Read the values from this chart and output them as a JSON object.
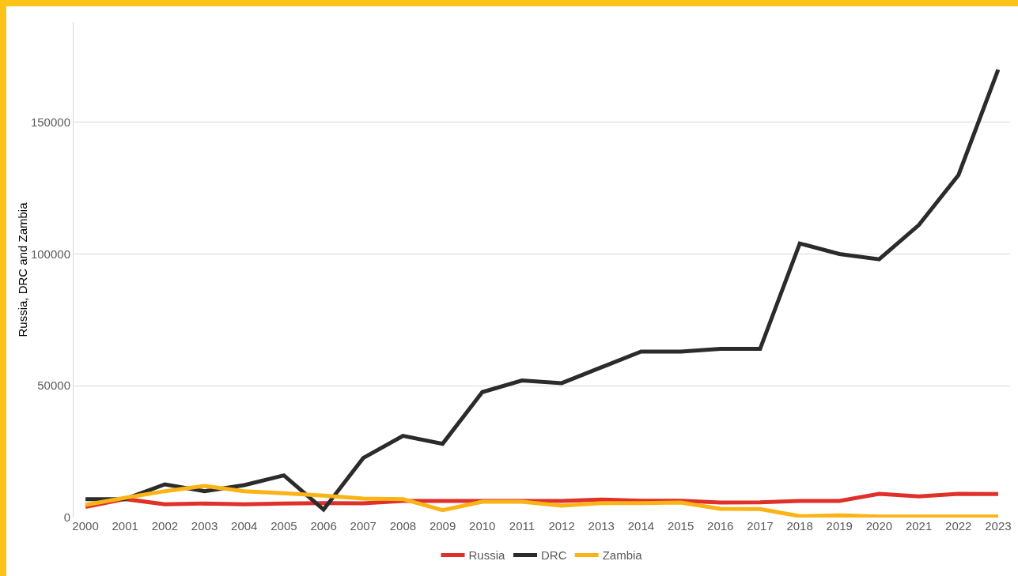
{
  "chart_data": {
    "type": "line",
    "ylabel": "Russia, DRC and Zambia",
    "categories": [
      "2000",
      "2001",
      "2002",
      "2003",
      "2004",
      "2005",
      "2006",
      "2007",
      "2008",
      "2009",
      "2010",
      "2011",
      "2012",
      "2013",
      "2014",
      "2015",
      "2016",
      "2017",
      "2018",
      "2019",
      "2020",
      "2021",
      "2022",
      "2023"
    ],
    "series": [
      {
        "name": "Russia",
        "color": "#e0302a",
        "values": [
          4000,
          7000,
          5000,
          5300,
          5000,
          5300,
          5500,
          5400,
          6300,
          6300,
          6300,
          6300,
          6300,
          6800,
          6400,
          6400,
          5700,
          5800,
          6300,
          6300,
          9000,
          8000,
          9000,
          8900
        ]
      },
      {
        "name": "DRC",
        "color": "#2b2b2b",
        "values": [
          7000,
          7000,
          12600,
          10000,
          12300,
          16000,
          3000,
          22600,
          31000,
          28000,
          47600,
          52000,
          51000,
          57000,
          63000,
          63000,
          64000,
          64000,
          104000,
          100000,
          98000,
          111000,
          130000,
          170000
        ]
      },
      {
        "name": "Zambia",
        "color": "#fbb316",
        "values": [
          4800,
          7500,
          10000,
          12000,
          10000,
          9200,
          8300,
          7200,
          7000,
          2800,
          6000,
          6000,
          4500,
          5500,
          5500,
          5700,
          3300,
          3200,
          500,
          800,
          400,
          400,
          400,
          400
        ]
      }
    ],
    "ylim": [
      0,
      188000
    ],
    "yticks": [
      0,
      50000,
      100000,
      150000
    ],
    "grid": "y",
    "legend": "bottom",
    "marker": "none",
    "line_style": "solid"
  }
}
